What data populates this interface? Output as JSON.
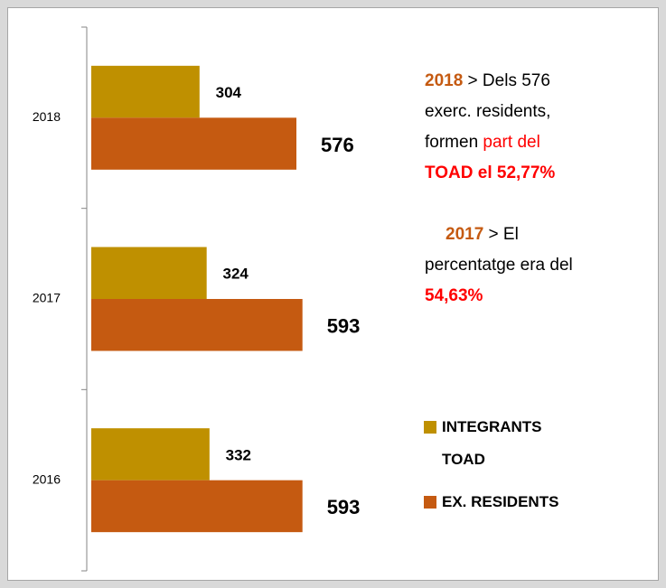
{
  "chart_data": {
    "type": "barh",
    "categories": [
      "2018",
      "2017",
      "2016"
    ],
    "series": [
      {
        "name": "INTEGRANTS TOAD",
        "color": "#bf9000",
        "values": [
          304,
          324,
          332
        ]
      },
      {
        "name": "EX. RESIDENTS",
        "color": "#c55a11",
        "values": [
          576,
          593,
          593
        ]
      }
    ],
    "annotations": [
      {
        "lines": [
          [
            {
              "text": "2018",
              "color": "#c55a11",
              "bold": true
            },
            {
              "text": " > Dels 576",
              "color": "#000000",
              "bold": false
            }
          ],
          [
            {
              "text": "exerc. residents,",
              "color": "#000000",
              "bold": false
            }
          ],
          [
            {
              "text": "formen ",
              "color": "#000000",
              "bold": false
            },
            {
              "text": "part del",
              "color": "#ff0000",
              "bold": false
            }
          ],
          [
            {
              "text": "TOAD el  52,77%",
              "color": "#ff0000",
              "bold": true
            }
          ]
        ]
      },
      {
        "lines": [
          [
            {
              "text": "2017",
              "color": "#c55a11",
              "bold": true
            },
            {
              "text": " > El",
              "color": "#000000",
              "bold": false
            }
          ],
          [
            {
              "text": "percentatge era del",
              "color": "#000000",
              "bold": false
            }
          ],
          [
            {
              "text": "54,63%",
              "color": "#ff0000",
              "bold": true
            }
          ]
        ]
      }
    ]
  }
}
